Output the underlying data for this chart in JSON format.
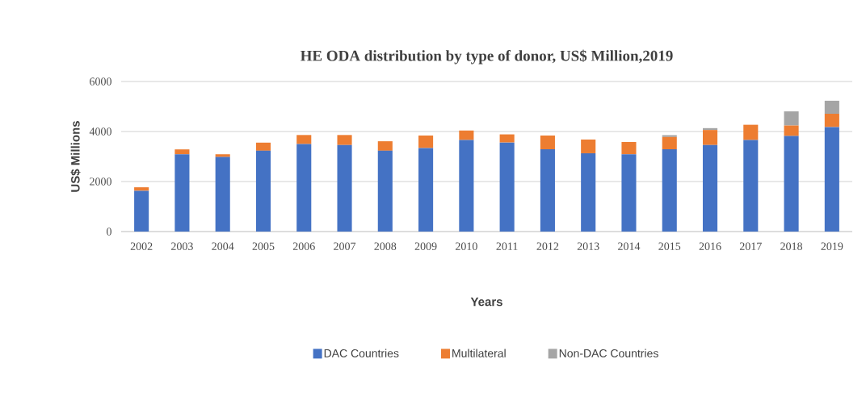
{
  "chart_data": {
    "type": "bar",
    "stacked": true,
    "title": "HE ODA distribution  by type of donor, US$ Million,2019",
    "xlabel": "Years",
    "ylabel": "US$ Millions",
    "categories": [
      "2002",
      "2003",
      "2004",
      "2005",
      "2006",
      "2007",
      "2008",
      "2009",
      "2010",
      "2011",
      "2012",
      "2013",
      "2014",
      "2015",
      "2016",
      "2017",
      "2018",
      "2019"
    ],
    "series": [
      {
        "name": "DAC Countries",
        "color": "#4472c4",
        "values": [
          1630,
          3090,
          2980,
          3230,
          3500,
          3460,
          3230,
          3340,
          3660,
          3560,
          3290,
          3130,
          3090,
          3290,
          3460,
          3660,
          3820,
          4180
        ]
      },
      {
        "name": "Multilateral",
        "color": "#ed7d31",
        "values": [
          140,
          195,
          110,
          325,
          360,
          400,
          380,
          500,
          380,
          325,
          550,
          550,
          490,
          490,
          600,
          610,
          420,
          530
        ]
      },
      {
        "name": "Non-DAC Countries",
        "color": "#a5a5a5",
        "values": [
          0,
          0,
          0,
          0,
          0,
          0,
          0,
          0,
          0,
          0,
          0,
          0,
          0,
          75,
          75,
          0,
          565,
          520
        ]
      }
    ],
    "ylim": [
      0,
      6000
    ],
    "yticks": [
      0,
      2000,
      4000,
      6000
    ],
    "grid": "y",
    "legend": "bottom"
  }
}
